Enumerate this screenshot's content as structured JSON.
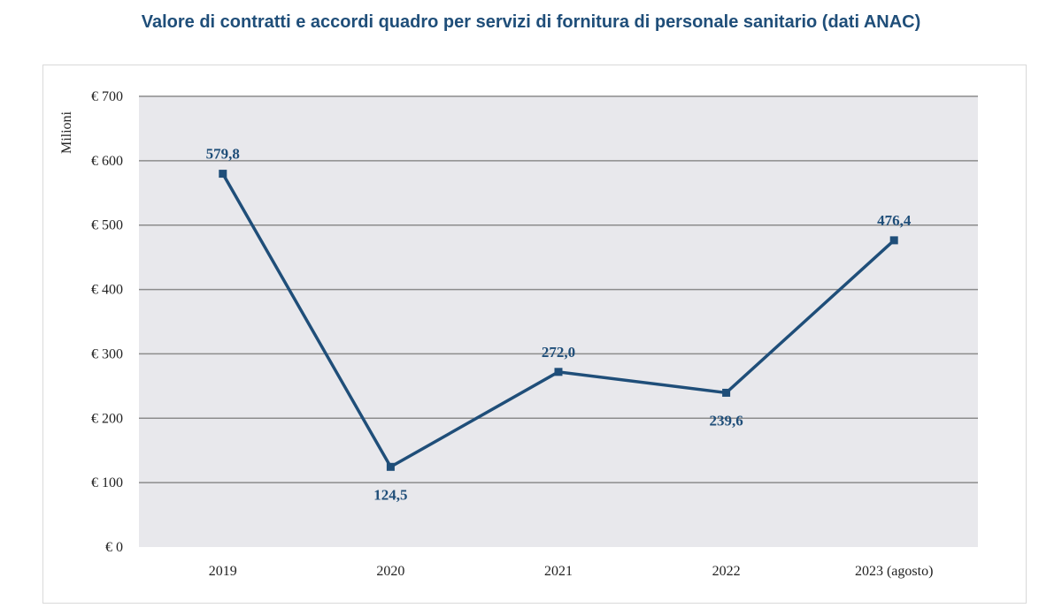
{
  "title": "Valore di contratti e accordi quadro per servizi di fornitura di personale sanitario (dati ANAC)",
  "chart_data": {
    "type": "line",
    "title": "Valore di contratti e accordi quadro per servizi di fornitura di personale sanitario (dati ANAC)",
    "ylabel": "Milioni",
    "xlabel": "",
    "categories": [
      "2019",
      "2020",
      "2021",
      "2022",
      "2023 (agosto)"
    ],
    "values": [
      579.8,
      124.5,
      272.0,
      239.6,
      476.4
    ],
    "data_labels": [
      "579,8",
      "124,5",
      "272,0",
      "239,6",
      "476,4"
    ],
    "ylim": [
      0,
      700
    ],
    "yticks": [
      {
        "value": 0,
        "label": "€ 0"
      },
      {
        "value": 100,
        "label": "€ 100"
      },
      {
        "value": 200,
        "label": "€ 200"
      },
      {
        "value": 300,
        "label": "€ 300"
      },
      {
        "value": 400,
        "label": "€ 400"
      },
      {
        "value": 500,
        "label": "€ 500"
      },
      {
        "value": 600,
        "label": "€ 600"
      },
      {
        "value": 700,
        "label": "€ 700"
      }
    ],
    "grid": true,
    "colors": {
      "line": "#1f4e79",
      "plot_bg": "#e8e8ec",
      "grid": "#8c8c8c"
    }
  }
}
